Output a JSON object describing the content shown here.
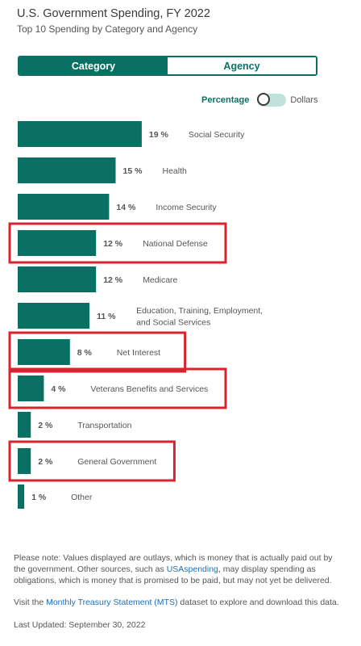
{
  "header": {
    "title": "U.S. Government Spending, FY 2022",
    "subtitle": "Top 10 Spending by Category and Agency"
  },
  "tabs": {
    "category": "Category",
    "agency": "Agency",
    "active": "category"
  },
  "unit_toggle": {
    "percentage": "Percentage",
    "dollars": "Dollars",
    "selected": "Percentage"
  },
  "colors": {
    "accent": "#0a7064",
    "highlight": "#d9232e"
  },
  "chart_data": {
    "type": "bar",
    "orientation": "horizontal",
    "title": "",
    "categories": [
      "Social Security",
      "Health",
      "Income Security",
      "National Defense",
      "Medicare",
      "Education, Training, Employment, and Social Services",
      "Net Interest",
      "Veterans Benefits and Services",
      "Transportation",
      "General Government"
    ],
    "value_labels": [
      "19 %",
      "15 %",
      "14 %",
      "12 %",
      "12 %",
      "11 %",
      "8 %",
      "4 %",
      "2 %",
      "2 %"
    ],
    "values": [
      19,
      15,
      14,
      12,
      12,
      11,
      8,
      4,
      2,
      2
    ],
    "extra_row": {
      "label": "Other",
      "value": 1,
      "value_label": "1 %"
    },
    "unit": "%",
    "highlighted": [
      "National Defense",
      "Net Interest",
      "Veterans Benefits and Services",
      "General Government"
    ]
  },
  "footer": {
    "note_part1": "Please note: Values displayed are outlays, which is money that is actually paid out by the government. Other sources, such as ",
    "note_link": "USAspending",
    "note_part2": ", may display spending as obligations, which is money that is promised to be paid, but may not yet be delivered.",
    "visit_part1": "Visit the ",
    "visit_link": "Monthly Treasury Statement (MTS)",
    "visit_part2": " dataset to explore and download this data.",
    "last_updated": "Last Updated: September 30, 2022"
  }
}
